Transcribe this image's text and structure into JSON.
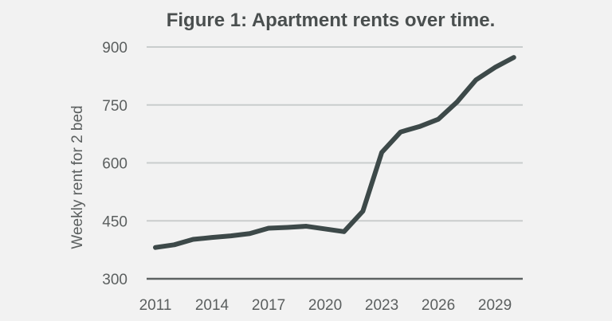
{
  "chart_data": {
    "type": "line",
    "title": "Figure 1:  Apartment rents over time.",
    "xlabel": "",
    "ylabel": "Weekly rent for 2 bed",
    "x": [
      2011,
      2012,
      2013,
      2014,
      2015,
      2016,
      2017,
      2018,
      2019,
      2020,
      2021,
      2022,
      2023,
      2024,
      2025,
      2026,
      2027,
      2028,
      2029,
      2030
    ],
    "series": [
      {
        "values": [
          381,
          388,
          402,
          407,
          411,
          417,
          431,
          433,
          436,
          429,
          422,
          475,
          627,
          680,
          694,
          713,
          758,
          815,
          847,
          873
        ]
      }
    ],
    "xticks": [
      2011,
      2014,
      2017,
      2020,
      2023,
      2026,
      2029
    ],
    "yticks": [
      300,
      450,
      600,
      750,
      900
    ],
    "ylim": [
      300,
      900
    ],
    "xlim": [
      2011,
      2030
    ],
    "grid": "horizontal",
    "colors": {
      "line": "#3d4949",
      "grid": "#c9cdcd",
      "baseline": "#5d6262",
      "background": "#f2f2f2"
    }
  }
}
